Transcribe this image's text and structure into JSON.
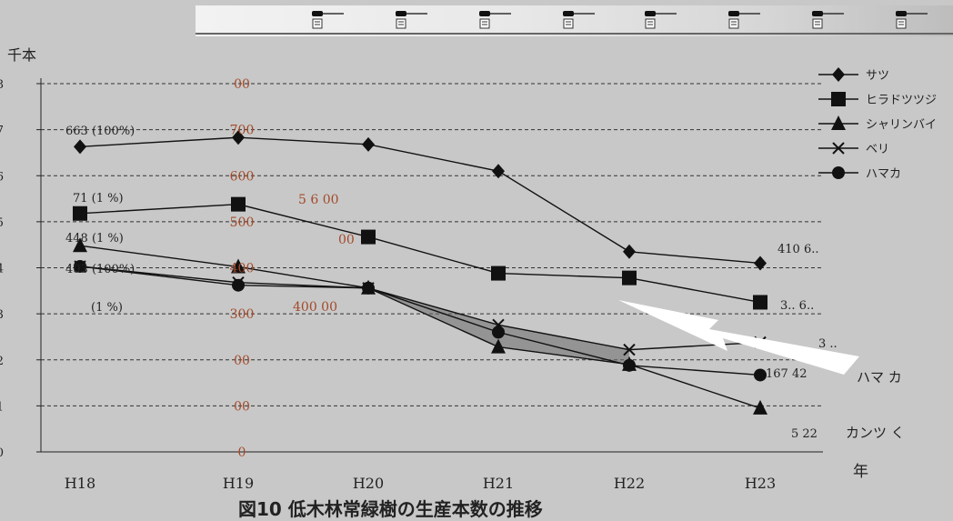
{
  "chart_data": {
    "type": "line",
    "title": "",
    "caption": "図10 低木林常緑樹の生産本数の推移",
    "ylabel": "千本",
    "xlabel": "年",
    "categories": [
      "H18",
      "H19",
      "H20",
      "H21",
      "H22",
      "H23"
    ],
    "ylim": [
      0,
      800
    ],
    "left_ticks": [
      "8",
      "7",
      "6",
      "5",
      "4",
      "3",
      "2",
      "1",
      "0"
    ],
    "grid": true,
    "legend_position": "right",
    "series": [
      {
        "name": "サツ",
        "marker": "diamond",
        "values": [
          663,
          683,
          668,
          610,
          435,
          410
        ]
      },
      {
        "name": "ヒラドツツジ",
        "marker": "square",
        "values": [
          518,
          538,
          467,
          388,
          378,
          325
        ]
      },
      {
        "name": "シャリンバイ",
        "marker": "triangle",
        "values": [
          448,
          402,
          356,
          228,
          190,
          95
        ]
      },
      {
        "name": "ベリ",
        "marker": "x",
        "values": [
          403,
          368,
          356,
          276,
          222,
          238
        ]
      },
      {
        "name": "ハマカ",
        "marker": "circle",
        "values": [
          403,
          362,
          356,
          260,
          188,
          167
        ]
      }
    ],
    "left_labels": [
      "663 (100%)",
      "71 (1 %)",
      "448 (1 %)",
      "403 (100%)",
      "(1 %)"
    ],
    "right_labels": [
      "410 6..",
      "3.. 6..",
      "3 ..",
      "167 42",
      "5 22"
    ],
    "mid_labels": [
      "5 6 00",
      "00",
      "400 00"
    ],
    "right_names": [
      "ハマ カ",
      "カンツ く"
    ],
    "overlay_ticks": [
      "00",
      "700",
      "600",
      "500",
      "400",
      "300",
      "00",
      "00",
      "0"
    ],
    "ribbon_icons": [
      "pin-icon",
      "pin-icon",
      "pin-icon",
      "pin-icon",
      "pin-icon",
      "pin-icon",
      "pin-icon",
      "pin-icon"
    ]
  }
}
